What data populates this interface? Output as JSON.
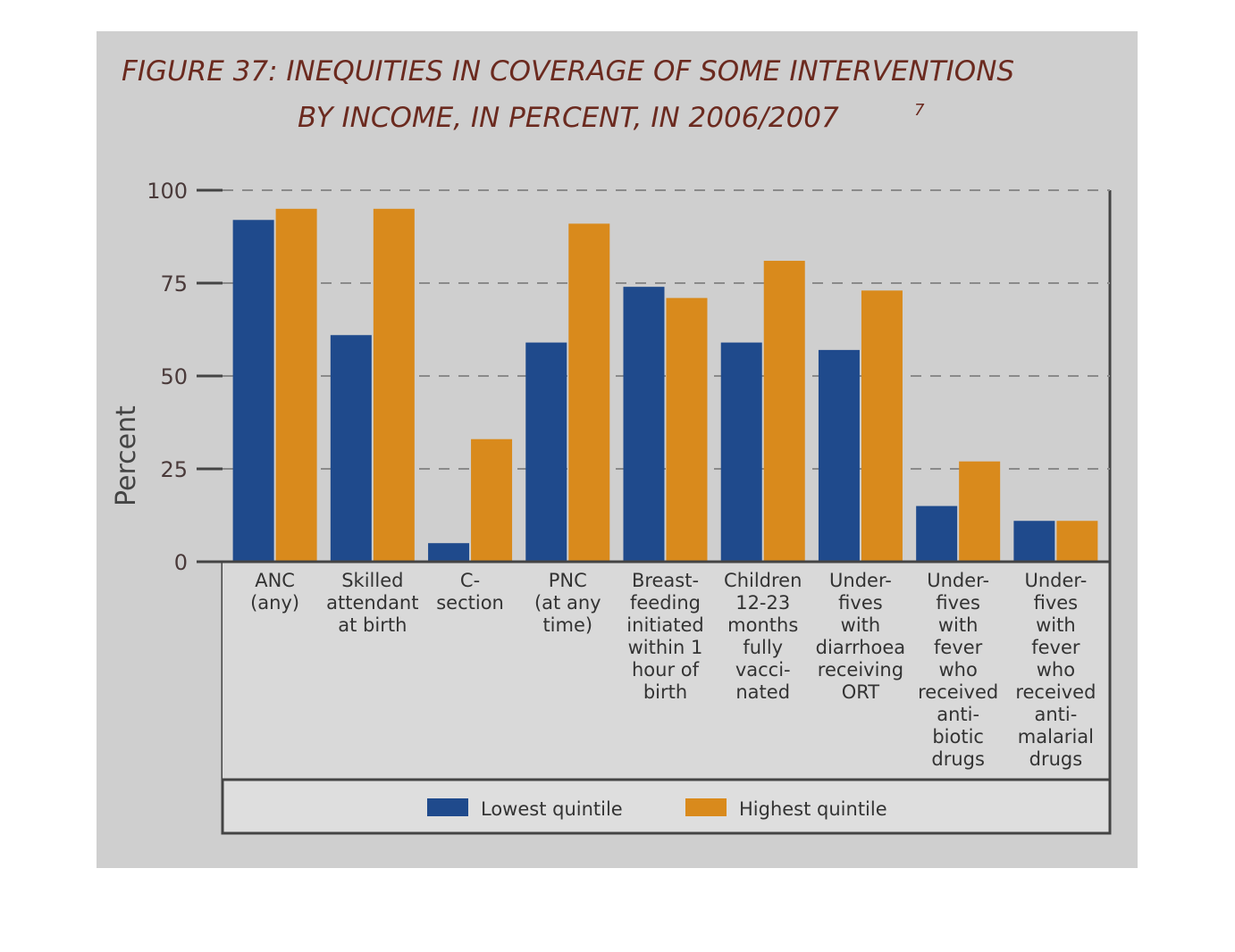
{
  "chart_data": {
    "type": "bar",
    "title_lines": [
      "FIGURE 37: INEQUITIES IN COVERAGE OF SOME INTERVENTIONS",
      "BY INCOME, IN PERCENT, IN 2006/2007"
    ],
    "title_superscript": "7",
    "ylabel": "Percent",
    "ylim": [
      0,
      100
    ],
    "yticks": [
      "0",
      "25",
      "50",
      "75",
      "100"
    ],
    "grid": "dashed horizontal",
    "legend_position": "bottom",
    "categories": [
      [
        "ANC",
        "(any)"
      ],
      [
        "Skilled",
        "attendant",
        "at birth"
      ],
      [
        "C-",
        "section"
      ],
      [
        "PNC",
        "(at any",
        "time)"
      ],
      [
        "Breast-",
        "feeding",
        "initiated",
        "within 1",
        "hour of",
        "birth"
      ],
      [
        "Children",
        "12-23",
        "months",
        "fully",
        "vacci-",
        "nated"
      ],
      [
        "Under-",
        "fives",
        "with",
        "diarrhoea",
        "receiving",
        "ORT"
      ],
      [
        "Under-",
        "fives",
        "with",
        "fever",
        "who",
        "received",
        "anti-",
        "biotic",
        "drugs"
      ],
      [
        "Under-",
        "fives",
        "with",
        "fever",
        "who",
        "received",
        "anti-",
        "malarial",
        "drugs"
      ]
    ],
    "series": [
      {
        "name": "Lowest quintile",
        "color": "#1f4a8c",
        "values": [
          92,
          61,
          5,
          59,
          74,
          59,
          57,
          15,
          11
        ]
      },
      {
        "name": "Highest quintile",
        "color": "#d98a1c",
        "values": [
          95,
          95,
          33,
          91,
          71,
          81,
          73,
          27,
          11
        ]
      }
    ]
  }
}
